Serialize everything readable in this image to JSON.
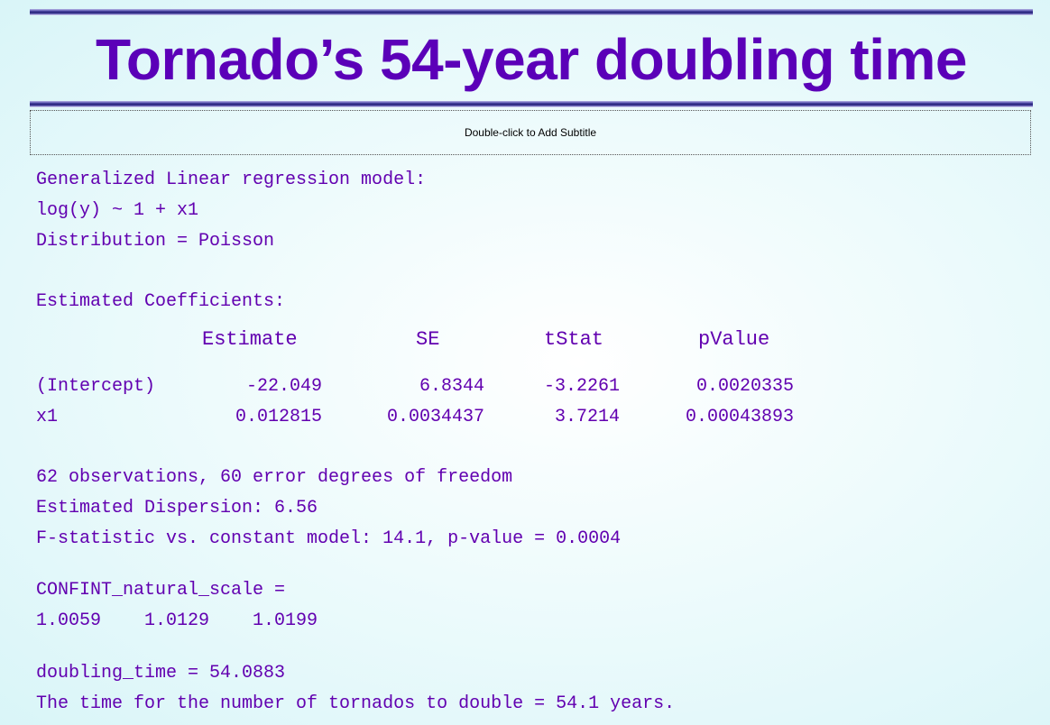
{
  "slide": {
    "title": "Tornado’s 54-year doubling time",
    "subtitle_placeholder": "Double-click to Add Subtitle"
  },
  "output": {
    "model_lines": [
      "Generalized Linear regression model:",
      "log(y) ~ 1 + x1",
      "Distribution = Poisson"
    ],
    "coef_heading": "Estimated Coefficients:",
    "coef_table": {
      "headers": [
        "Estimate",
        "SE",
        "tStat",
        "pValue"
      ],
      "rows": [
        {
          "name": "(Intercept)",
          "estimate": "-22.049",
          "se": "6.8344",
          "tstat": "-3.2261",
          "pvalue": "0.0020335"
        },
        {
          "name": "x1",
          "estimate": "0.012815",
          "se": "0.0034437",
          "tstat": "3.7214",
          "pvalue": "0.00043893"
        }
      ]
    },
    "stats_lines": [
      "62 observations, 60 error degrees of freedom",
      "Estimated Dispersion: 6.56",
      "F-statistic vs. constant model: 14.1, p-value = 0.0004"
    ],
    "confint_label": "CONFINT_natural_scale =",
    "confint_values": "1.0059    1.0129    1.0199",
    "doubling_line": "doubling_time = 54.0883",
    "conclusion": "The time for the number of tornados to double = 54.1 years."
  }
}
